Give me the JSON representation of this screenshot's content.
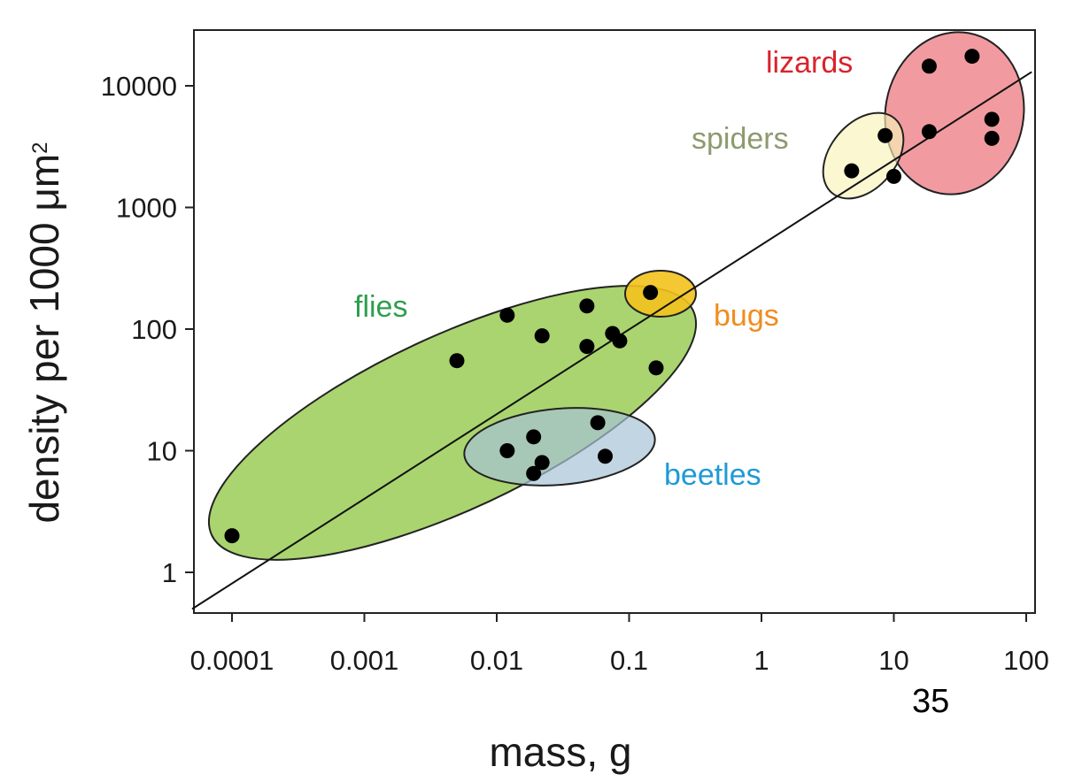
{
  "chart_data": {
    "type": "scatter",
    "xscale": "log",
    "yscale": "log",
    "xlabel": "mass, g",
    "ylabel": "density per 1000 μm",
    "ylabel_superscript": "2",
    "xlim": [
      5e-05,
      110
    ],
    "ylim": [
      0.5,
      30000
    ],
    "x_ticks": [
      {
        "value": 0.0001,
        "label": "0.0001"
      },
      {
        "value": 0.001,
        "label": "0.001"
      },
      {
        "value": 0.01,
        "label": "0.01"
      },
      {
        "value": 0.1,
        "label": "0.1"
      },
      {
        "value": 1,
        "label": "1"
      },
      {
        "value": 10,
        "label": "10"
      },
      {
        "value": 100,
        "label": "100"
      }
    ],
    "y_ticks": [
      {
        "value": 1,
        "label": "1"
      },
      {
        "value": 10,
        "label": "10"
      },
      {
        "value": 100,
        "label": "100"
      },
      {
        "value": 1000,
        "label": "1000"
      },
      {
        "value": 10000,
        "label": "10000"
      }
    ],
    "grid": false,
    "fit_line": {
      "x": [
        5e-05,
        110
      ],
      "y": [
        0.5,
        13000
      ]
    },
    "groups": [
      {
        "name": "flies",
        "color": "#8dc63f",
        "label_color": "#2e9e4f",
        "points": [
          [
            0.0001,
            2.0
          ],
          [
            0.005,
            55
          ],
          [
            0.012,
            130
          ],
          [
            0.022,
            88
          ],
          [
            0.048,
            155
          ],
          [
            0.048,
            72
          ],
          [
            0.075,
            92
          ],
          [
            0.085,
            80
          ],
          [
            0.16,
            48
          ]
        ]
      },
      {
        "name": "beetles",
        "color": "#a7c3d6",
        "label_color": "#1e9ad6",
        "points": [
          [
            0.012,
            10
          ],
          [
            0.019,
            13
          ],
          [
            0.019,
            6.5
          ],
          [
            0.022,
            8
          ],
          [
            0.058,
            17
          ],
          [
            0.066,
            9
          ]
        ]
      },
      {
        "name": "bugs",
        "color": "#f3c21d",
        "label_color": "#f08c1e",
        "points": [
          [
            0.145,
            200
          ]
        ]
      },
      {
        "name": "spiders",
        "color": "#f7f3b8",
        "label_color": "#8d9a6e",
        "points": [
          [
            4.8,
            2000
          ],
          [
            8.6,
            3900
          ]
        ]
      },
      {
        "name": "lizards",
        "color": "#ee8a8f",
        "label_color": "#d9232d",
        "points": [
          [
            10,
            1800
          ],
          [
            18.5,
            4200
          ],
          [
            18.5,
            14500
          ],
          [
            39,
            17500
          ],
          [
            55,
            5300
          ],
          [
            55,
            3700
          ]
        ]
      }
    ]
  },
  "page_number": "35"
}
